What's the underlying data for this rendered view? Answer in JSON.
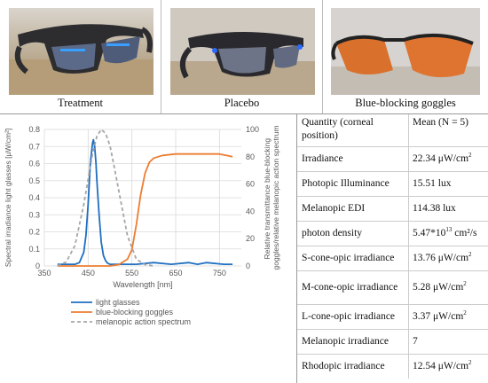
{
  "photos": [
    {
      "caption": "Treatment"
    },
    {
      "caption": "Placebo"
    },
    {
      "caption": "Blue-blocking goggles"
    }
  ],
  "colors": {
    "light_glasses": "#1f6fc0",
    "blue_blocking": "#ed7d31",
    "melanopic": "#a6a6a6"
  },
  "chart_data": {
    "type": "line",
    "xlabel": "Wavelength [nm]",
    "ylabel_left": "Spectral irradiance light glasses [µW/cm²]",
    "ylabel_right": "Relative transmittance blue-blocking goggles/relative melanopic action spectrum",
    "xlim": [
      350,
      800
    ],
    "ylim_left": [
      0,
      0.8
    ],
    "ylim_right": [
      0,
      100
    ],
    "x_ticks": [
      "350",
      "450",
      "550",
      "650",
      "750"
    ],
    "y_ticks_left": [
      "0",
      "0.1",
      "0.2",
      "0.3",
      "0.4",
      "0.5",
      "0.6",
      "0.7",
      "0.8"
    ],
    "y_ticks_right": [
      "0",
      "20",
      "40",
      "60",
      "80",
      "100"
    ],
    "series": [
      {
        "name": "light glasses",
        "axis": "left",
        "style": "solid",
        "x": [
          380,
          400,
          420,
          430,
          440,
          445,
          450,
          455,
          460,
          462,
          465,
          468,
          470,
          475,
          480,
          485,
          490,
          495,
          500,
          510,
          520,
          540,
          560,
          600,
          640,
          680,
          700,
          720,
          760,
          780
        ],
        "y": [
          0.01,
          0.01,
          0.01,
          0.02,
          0.08,
          0.18,
          0.36,
          0.6,
          0.72,
          0.74,
          0.7,
          0.6,
          0.5,
          0.3,
          0.14,
          0.06,
          0.03,
          0.015,
          0.01,
          0.01,
          0.01,
          0.01,
          0.01,
          0.02,
          0.01,
          0.02,
          0.01,
          0.02,
          0.01,
          0.01
        ]
      },
      {
        "name": "blue-blocking goggles",
        "axis": "right",
        "style": "solid",
        "x": [
          380,
          450,
          500,
          520,
          540,
          550,
          560,
          570,
          580,
          590,
          600,
          620,
          650,
          700,
          750,
          780
        ],
        "y": [
          0,
          0,
          0,
          1,
          5,
          12,
          30,
          52,
          68,
          76,
          79,
          81,
          82,
          82,
          82,
          80
        ]
      },
      {
        "name": "melanopic action spectrum",
        "axis": "right",
        "style": "dashed",
        "x": [
          380,
          400,
          420,
          440,
          460,
          470,
          480,
          490,
          500,
          510,
          520,
          540,
          560,
          580,
          600
        ],
        "y": [
          0,
          3,
          15,
          45,
          82,
          95,
          100,
          97,
          88,
          72,
          55,
          22,
          5,
          1,
          0
        ]
      }
    ]
  },
  "table": {
    "header": {
      "quantity": "Quantity (corneal position)",
      "mean": "Mean (N = 5)"
    },
    "rows": [
      {
        "quantity": "Irradiance",
        "value": "22.34 μW/cm",
        "sup": "2"
      },
      {
        "quantity": "Photopic Illuminance",
        "value": "15.51 lux",
        "sup": ""
      },
      {
        "quantity": "Melanopic EDI",
        "value": "114.38 lux",
        "sup": ""
      },
      {
        "quantity": "photon density",
        "value": "5.47*10",
        "sup": "13",
        "suffix": " cm²/s"
      },
      {
        "quantity": "S-cone-opic irradiance",
        "value": "13.76 μW/cm",
        "sup": "2"
      },
      {
        "quantity": "M-cone-opic irradiance",
        "value": "5.28 μW/cm",
        "sup": "2"
      },
      {
        "quantity": "L-cone-opic irradiance",
        "value": "3.37 μW/cm",
        "sup": "2"
      },
      {
        "quantity": "Melanopic irradiance",
        "value": "7",
        "sup": ""
      },
      {
        "quantity": "Rhodopic irradiance",
        "value": "12.54 μW/cm",
        "sup": "2"
      }
    ]
  }
}
